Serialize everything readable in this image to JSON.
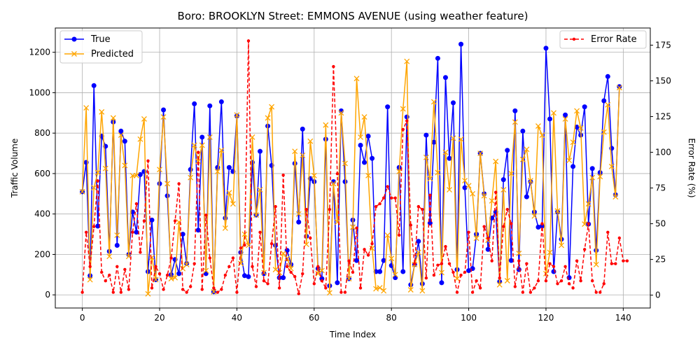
{
  "chart_data": {
    "type": "line",
    "title": "Boro: BROOKLYN Street: EMMONS AVENUE (using weather feature)",
    "xlabel": "Time Index",
    "ylabel_left": "Traffic Volume",
    "ylabel_right": "Error Rate (%)",
    "xlim": [
      -7,
      147
    ],
    "ylim_left": [
      -65,
      1320
    ],
    "ylim_right": [
      -9,
      187
    ],
    "x_ticks": [
      0,
      20,
      40,
      60,
      80,
      100,
      120,
      140
    ],
    "y_ticks_left": [
      0,
      200,
      400,
      600,
      800,
      1000,
      1200
    ],
    "y_ticks_right": [
      0,
      25,
      50,
      75,
      100,
      125,
      150,
      175
    ],
    "grid": true,
    "legend_left_position": "upper-left",
    "legend_right_position": "upper-right",
    "colors": {
      "true": "#0000ff",
      "predicted": "#ffa500",
      "error": "#ff0000"
    },
    "series": [
      {
        "name": "True",
        "axis": "left",
        "marker": "o",
        "values": [
          510,
          655,
          95,
          1035,
          340,
          785,
          735,
          215,
          855,
          245,
          810,
          760,
          200,
          410,
          310,
          595,
          610,
          115,
          370,
          75,
          550,
          915,
          490,
          100,
          175,
          105,
          300,
          155,
          620,
          945,
          320,
          780,
          105,
          935,
          15,
          630,
          955,
          380,
          630,
          610,
          885,
          210,
          95,
          90,
          655,
          395,
          710,
          105,
          835,
          640,
          245,
          85,
          85,
          220,
          150,
          650,
          360,
          820,
          290,
          575,
          560,
          130,
          80,
          770,
          45,
          560,
          60,
          910,
          560,
          80,
          370,
          170,
          740,
          655,
          785,
          675,
          115,
          115,
          170,
          930,
          145,
          85,
          630,
          115,
          880,
          50,
          150,
          265,
          55,
          790,
          355,
          755,
          1170,
          60,
          1075,
          675,
          950,
          125,
          1240,
          530,
          120,
          130,
          300,
          700,
          500,
          225,
          380,
          410,
          65,
          570,
          715,
          170,
          910,
          125,
          810,
          485,
          560,
          410,
          335,
          340,
          1220,
          870,
          115,
          410,
          275,
          890,
          85,
          635,
          830,
          790,
          930,
          350,
          625,
          220,
          605,
          960,
          1080,
          725,
          495,
          1030
        ]
      },
      {
        "name": "Predicted",
        "axis": "left",
        "marker": "x",
        "values": [
          510,
          925,
          75,
          530,
          605,
          905,
          625,
          190,
          875,
          295,
          790,
          640,
          190,
          590,
          590,
          770,
          870,
          5,
          185,
          75,
          620,
          880,
          550,
          80,
          85,
          360,
          130,
          150,
          580,
          740,
          660,
          740,
          120,
          780,
          15,
          610,
          715,
          330,
          505,
          450,
          890,
          155,
          300,
          245,
          780,
          395,
          520,
          110,
          875,
          930,
          125,
          110,
          205,
          180,
          130,
          710,
          400,
          690,
          250,
          760,
          590,
          105,
          120,
          840,
          10,
          550,
          360,
          900,
          650,
          80,
          335,
          1070,
          780,
          880,
          590,
          230,
          30,
          35,
          20,
          295,
          180,
          100,
          610,
          920,
          1155,
          25,
          150,
          210,
          20,
          680,
          575,
          955,
          605,
          110,
          705,
          520,
          775,
          80,
          770,
          565,
          540,
          500,
          280,
          700,
          490,
          270,
          465,
          660,
          50,
          520,
          70,
          600,
          855,
          205,
          670,
          720,
          565,
          390,
          835,
          790,
          105,
          210,
          900,
          415,
          245,
          870,
          665,
          755,
          910,
          825,
          350,
          450,
          580,
          150,
          585,
          805,
          940,
          635,
          485,
          1025
        ]
      },
      {
        "name": "Error Rate",
        "axis": "right",
        "marker": "o",
        "values": [
          2,
          44,
          20,
          48,
          80,
          16,
          10,
          14,
          2,
          20,
          2,
          18,
          4,
          44,
          64,
          30,
          52,
          94,
          5,
          20,
          15,
          4,
          14,
          26,
          52,
          78,
          4,
          2,
          6,
          22,
          100,
          4,
          56,
          26,
          5,
          2,
          4,
          14,
          20,
          26,
          2,
          33,
          35,
          178,
          20,
          6,
          44,
          10,
          8,
          36,
          62,
          5,
          84,
          20,
          16,
          13,
          1,
          15,
          60,
          40,
          8,
          20,
          10,
          5,
          60,
          160,
          85,
          2,
          2,
          24,
          16,
          47,
          5,
          32,
          28,
          36,
          62,
          64,
          68,
          76,
          68,
          68,
          42,
          116,
          122,
          49,
          22,
          62,
          60,
          12,
          70,
          14,
          21,
          22,
          34,
          22,
          16,
          2,
          14,
          16,
          44,
          2,
          10,
          5,
          48,
          40,
          24,
          72,
          12,
          48,
          60,
          50,
          6,
          24,
          2,
          22,
          2,
          5,
          10,
          50,
          10,
          22,
          20,
          8,
          10,
          20,
          8,
          5,
          24,
          10,
          32,
          50,
          10,
          2,
          2,
          8,
          44,
          22,
          22,
          40,
          24,
          24
        ]
      }
    ]
  }
}
